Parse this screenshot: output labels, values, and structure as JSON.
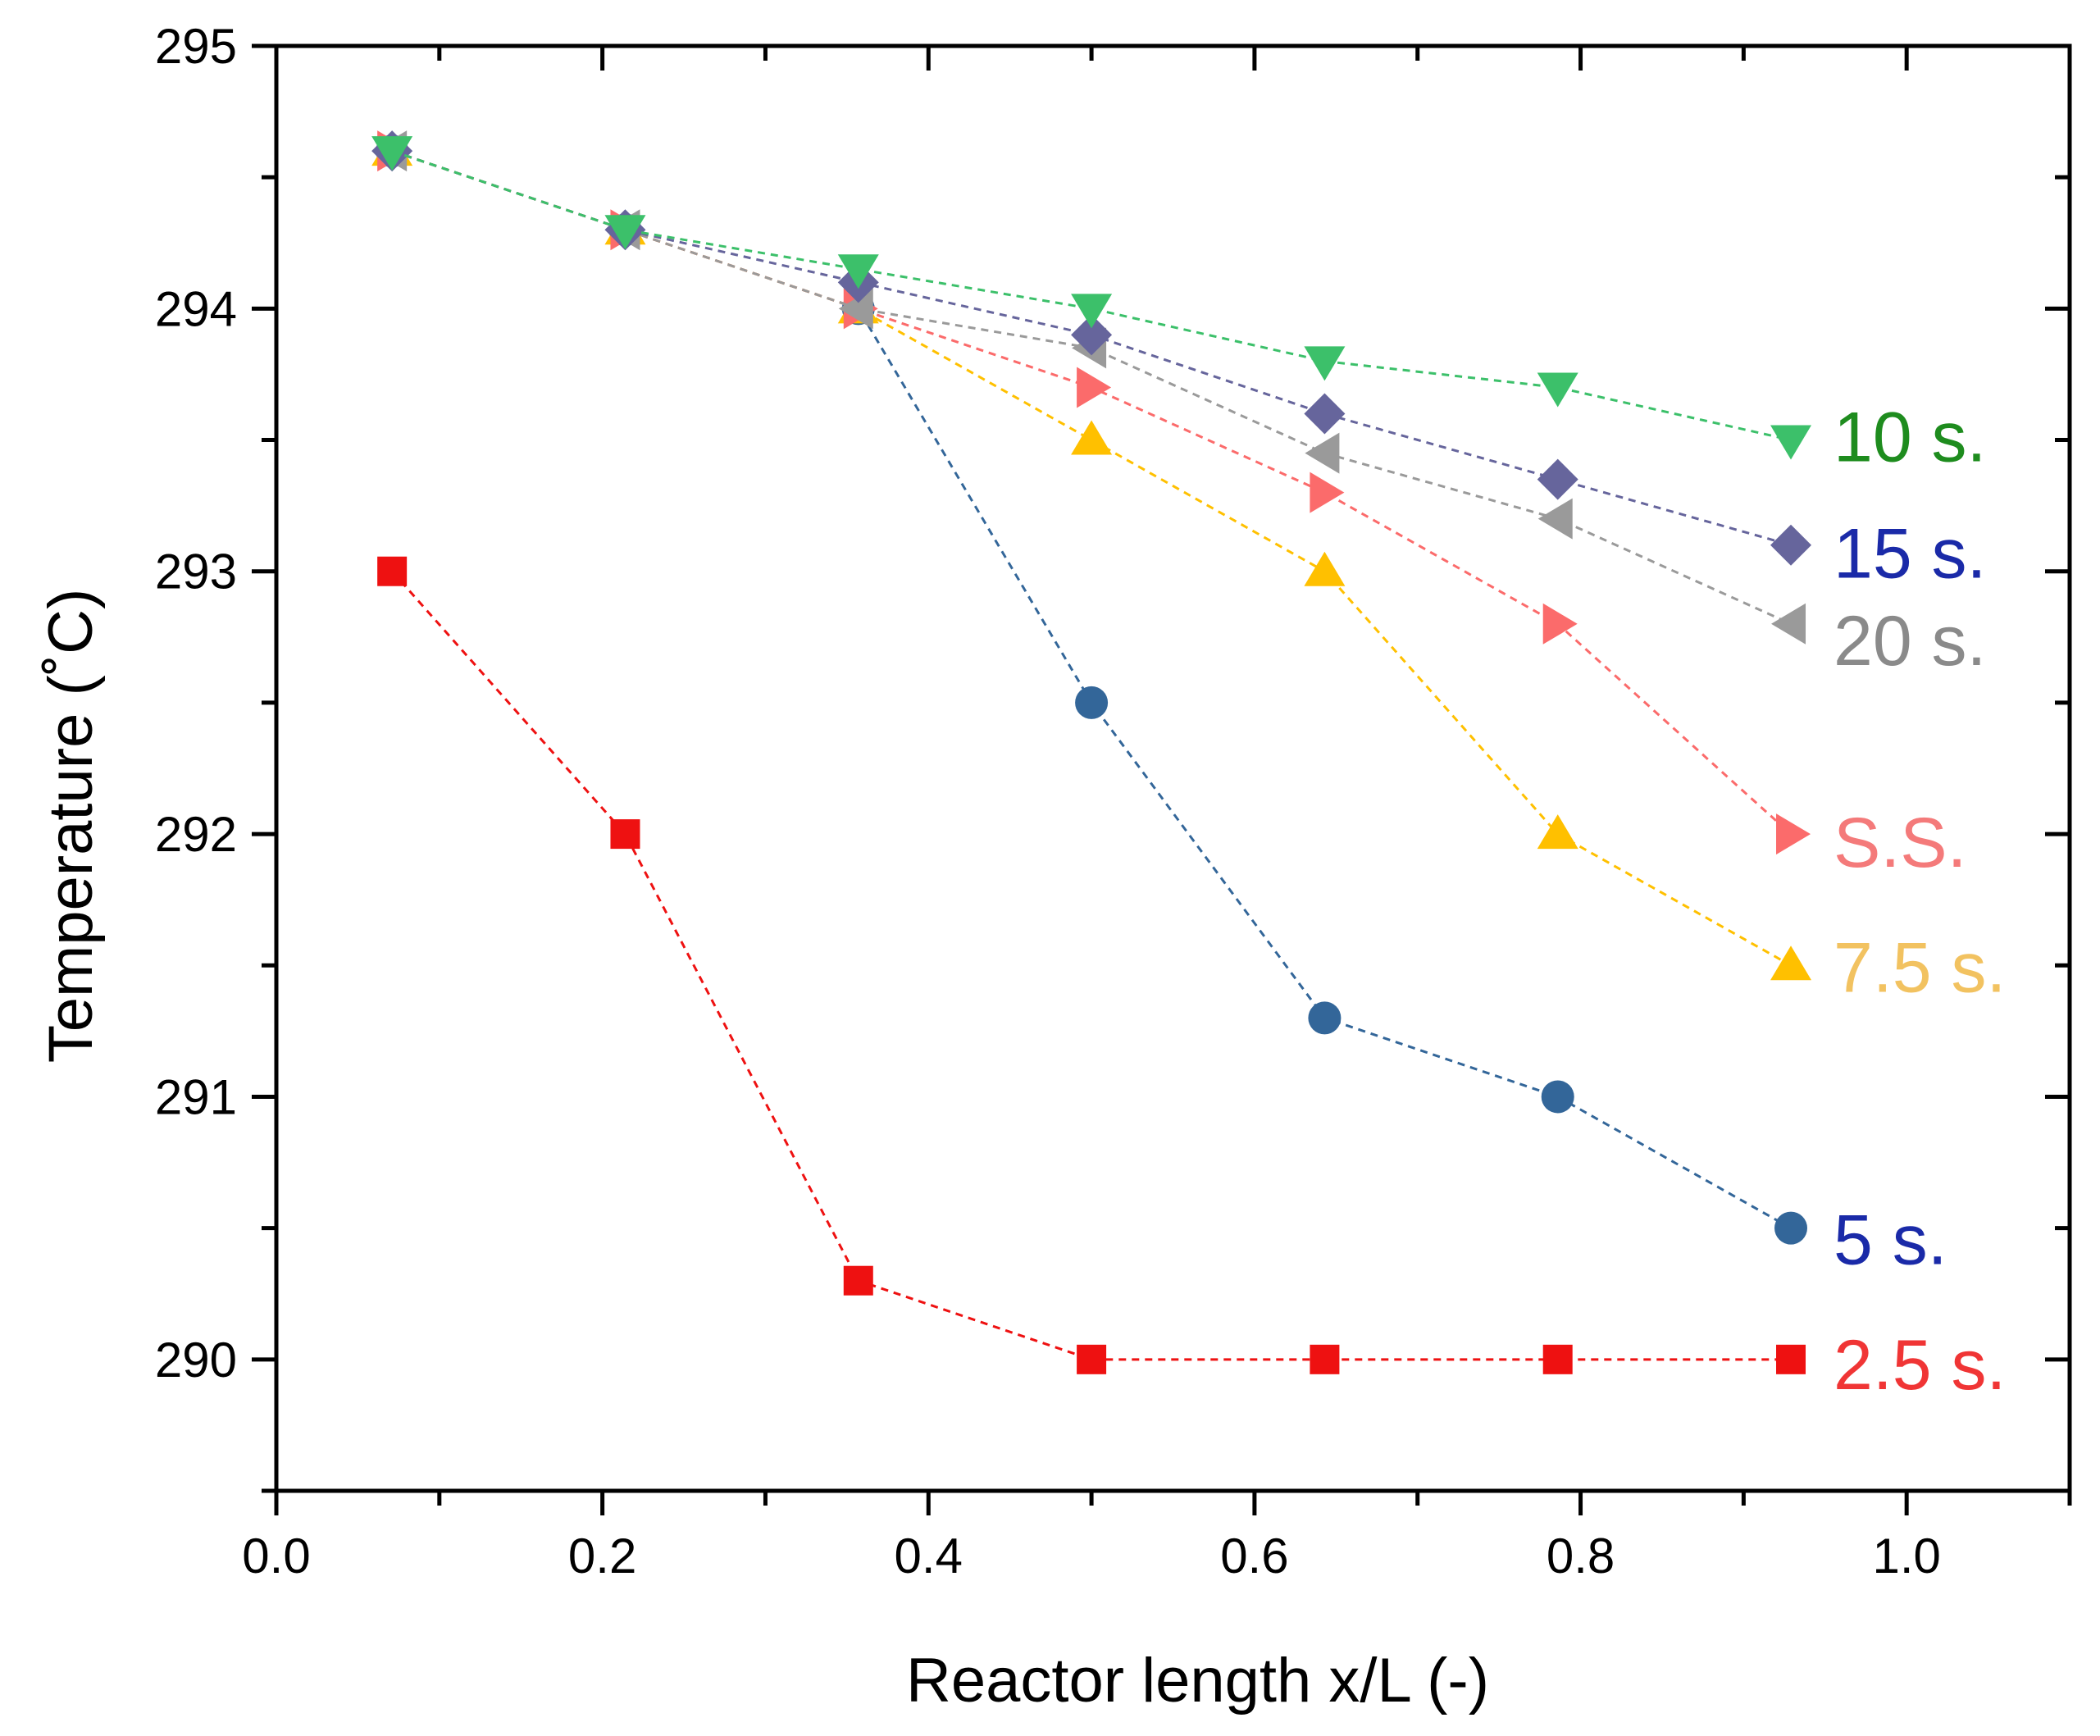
{
  "chart_data": {
    "type": "line",
    "title": "",
    "xlabel": "Reactor length x/L (-)",
    "ylabel": "Temperature (˚C)",
    "xlim": [
      0.0,
      1.1
    ],
    "ylim": [
      289.5,
      295.0
    ],
    "x_ticks": [
      0.0,
      0.2,
      0.4,
      0.6,
      0.8,
      1.0
    ],
    "x_tick_labels": [
      "0.0",
      "0.2",
      "0.4",
      "0.6",
      "0.8",
      "1.0"
    ],
    "y_ticks": [
      290,
      291,
      292,
      293,
      294,
      295
    ],
    "y_tick_labels": [
      "290",
      "291",
      "292",
      "293",
      "294",
      "295"
    ],
    "grid": false,
    "legend": "inline labels at right end of each series",
    "x": [
      0.071,
      0.214,
      0.357,
      0.5,
      0.643,
      0.786,
      0.929
    ],
    "series": [
      {
        "name": "2.5 s.",
        "label": "2.5 s.",
        "marker": "square",
        "color": "#ee1111",
        "label_color": "#f03535",
        "values": [
          293.0,
          292.0,
          290.3,
          290.0,
          290.0,
          290.0,
          290.0
        ]
      },
      {
        "name": "5 s.",
        "label": "5 s.",
        "marker": "circle",
        "color": "#336699",
        "label_color": "#1a2aa8",
        "values": [
          294.6,
          294.3,
          294.0,
          292.5,
          291.3,
          291.0,
          290.5
        ]
      },
      {
        "name": "7.5 s.",
        "label": "7.5 s.",
        "marker": "triangle-up",
        "color": "#ffc000",
        "label_color": "#f2c260",
        "values": [
          294.6,
          294.3,
          294.0,
          293.5,
          293.0,
          292.0,
          291.5
        ]
      },
      {
        "name": "S.S.",
        "label": "S.S.",
        "marker": "triangle-right",
        "color": "#fb6b6b",
        "label_color": "#f47a7a",
        "values": [
          294.6,
          294.3,
          294.0,
          293.7,
          293.3,
          292.8,
          292.0
        ]
      },
      {
        "name": "20 s.",
        "label": "20 s.",
        "marker": "triangle-left",
        "color": "#9a9a9a",
        "label_color": "#8a8a8a",
        "values": [
          294.6,
          294.3,
          294.0,
          293.85,
          293.45,
          293.2,
          292.8
        ]
      },
      {
        "name": "15 s.",
        "label": "15 s.",
        "marker": "diamond",
        "color": "#66659c",
        "label_color": "#1a2aa8",
        "values": [
          294.6,
          294.3,
          294.1,
          293.9,
          293.6,
          293.35,
          293.1
        ]
      },
      {
        "name": "10 s.",
        "label": "10 s.",
        "marker": "triangle-down",
        "color": "#3cc06a",
        "label_color": "#1e8c1e",
        "values": [
          294.6,
          294.3,
          294.15,
          294.0,
          293.8,
          293.7,
          293.5
        ]
      }
    ]
  }
}
